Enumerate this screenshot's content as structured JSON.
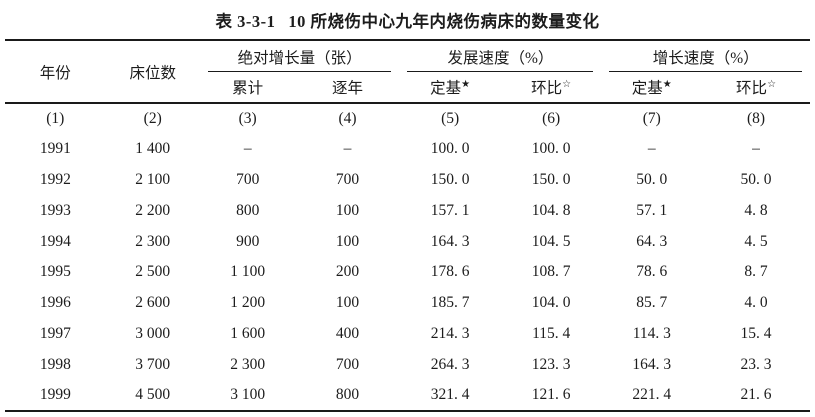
{
  "title": {
    "label": "表 3-3-1",
    "text": "10 所烧伤中心九年内烧伤病床的数量变化"
  },
  "table": {
    "headers": {
      "year": "年份",
      "beds": "床位数"
    },
    "groups": [
      "绝对增长量（张）",
      "发展速度（%）",
      "增长速度（%）"
    ],
    "sub_headers": [
      {
        "label": "累计",
        "star": ""
      },
      {
        "label": "逐年",
        "star": ""
      },
      {
        "label": "定基",
        "star": "★"
      },
      {
        "label": "环比",
        "star": "☆"
      },
      {
        "label": "定基",
        "star": "★"
      },
      {
        "label": "环比",
        "star": "☆"
      }
    ],
    "index_row": [
      "(1)",
      "(2)",
      "(3)",
      "(4)",
      "(5)",
      "(6)",
      "(7)",
      "(8)"
    ],
    "rows": [
      [
        "1991",
        "1 400",
        "–",
        "–",
        "100. 0",
        "100. 0",
        "–",
        "–"
      ],
      [
        "1992",
        "2 100",
        "700",
        "700",
        "150. 0",
        "150. 0",
        "50. 0",
        "50. 0"
      ],
      [
        "1993",
        "2 200",
        "800",
        "100",
        "157. 1",
        "104. 8",
        "57. 1",
        "4. 8"
      ],
      [
        "1994",
        "2 300",
        "900",
        "100",
        "164. 3",
        "104. 5",
        "64. 3",
        "4. 5"
      ],
      [
        "1995",
        "2 500",
        "1 100",
        "200",
        "178. 6",
        "108. 7",
        "78. 6",
        "8. 7"
      ],
      [
        "1996",
        "2 600",
        "1 200",
        "100",
        "185. 7",
        "104. 0",
        "85. 7",
        "4. 0"
      ],
      [
        "1997",
        "3 000",
        "1 600",
        "400",
        "214. 3",
        "115. 4",
        "114. 3",
        "15. 4"
      ],
      [
        "1998",
        "3 700",
        "2 300",
        "700",
        "264. 3",
        "123. 3",
        "164. 3",
        "23. 3"
      ],
      [
        "1999",
        "4 500",
        "3 100",
        "800",
        "321. 4",
        "121. 6",
        "221. 4",
        "21. 6"
      ]
    ]
  },
  "colors": {
    "text": "#1c1c1c",
    "rule": "#1a1a1a",
    "background": "#ffffff"
  }
}
